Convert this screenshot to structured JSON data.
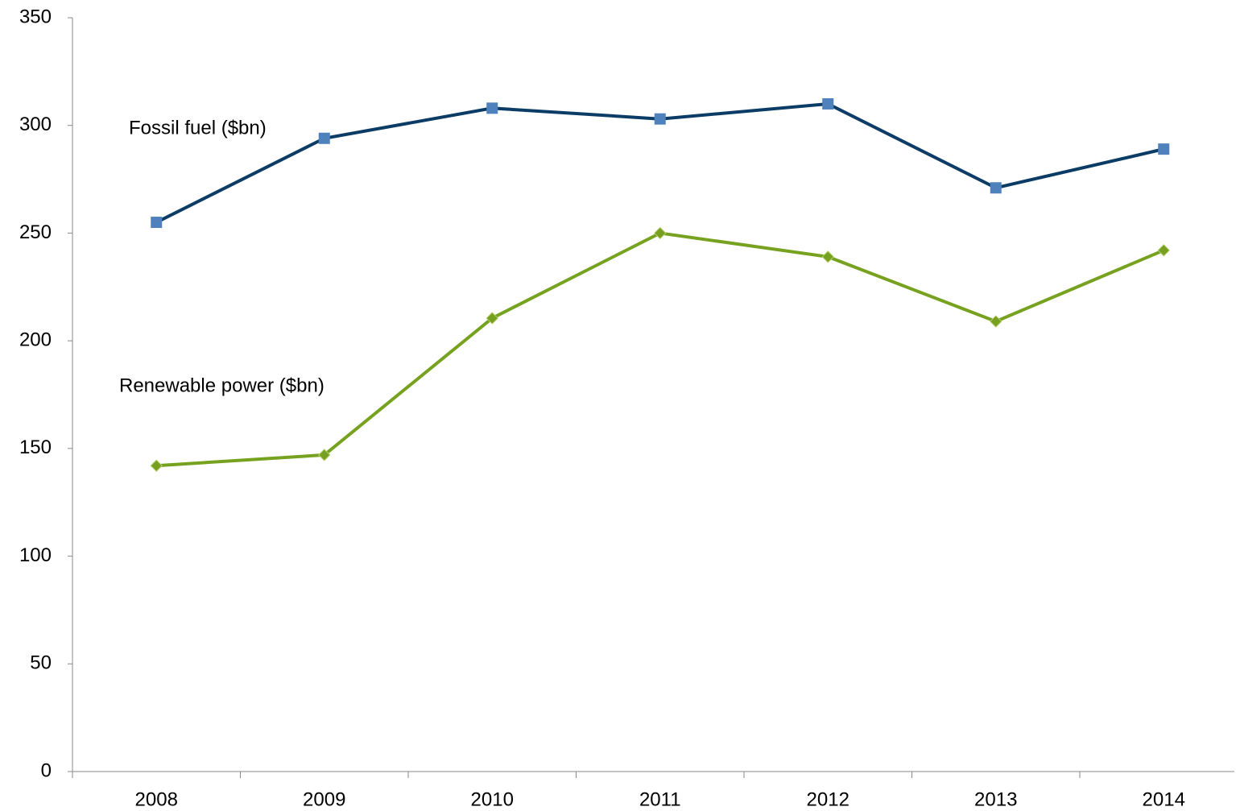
{
  "chart_data": {
    "type": "line",
    "categories": [
      "2008",
      "2009",
      "2010",
      "2011",
      "2012",
      "2013",
      "2014"
    ],
    "series": [
      {
        "name": "Fossil fuel ($bn)",
        "color": "#0b3c66",
        "marker_color": "#4f81bd",
        "marker": "square",
        "values": [
          255,
          294,
          308,
          303,
          310,
          271,
          289
        ]
      },
      {
        "name": "Renewable power ($bn)",
        "color": "#77a21f",
        "marker_color": "#77a021",
        "marker": "diamond",
        "values": [
          142,
          147,
          210.5,
          250,
          239,
          209,
          242
        ]
      }
    ],
    "ylim": [
      0,
      350
    ],
    "yticks": [
      0,
      50,
      100,
      150,
      200,
      250,
      300,
      350
    ],
    "grid": false
  }
}
